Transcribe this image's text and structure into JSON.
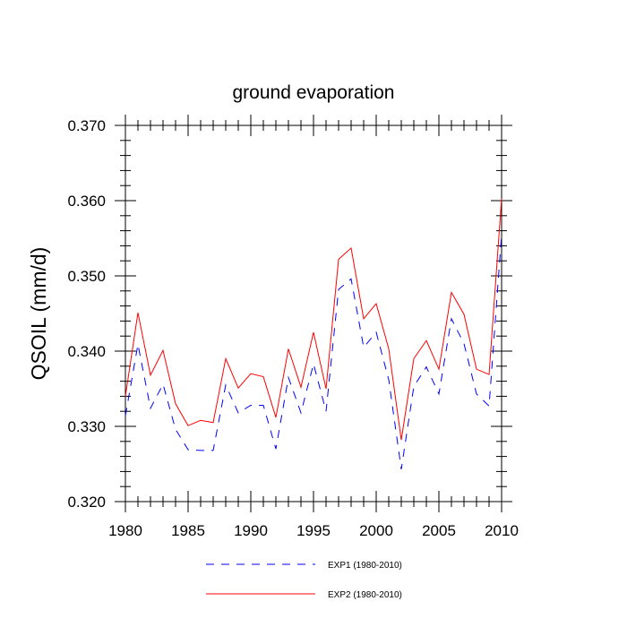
{
  "chart_data": {
    "type": "line",
    "title": "ground evaporation",
    "xlabel": "",
    "ylabel": "QSOIL  (mm/d)",
    "xlim": [
      1980,
      2010
    ],
    "ylim": [
      0.32,
      0.37
    ],
    "x_ticks": [
      1980,
      1985,
      1990,
      1995,
      2000,
      2005,
      2010
    ],
    "x_tick_labels": [
      "1980",
      "1985",
      "1990",
      "1995",
      "2000",
      "2005",
      "2010"
    ],
    "y_ticks": [
      0.32,
      0.33,
      0.34,
      0.35,
      0.36,
      0.37
    ],
    "y_tick_labels": [
      "0.320",
      "0.330",
      "0.340",
      "0.350",
      "0.360",
      "0.370"
    ],
    "grid": false,
    "legend_position": "bottom",
    "x": [
      1980,
      1981,
      1982,
      1983,
      1984,
      1985,
      1986,
      1987,
      1988,
      1989,
      1990,
      1991,
      1992,
      1993,
      1994,
      1995,
      1996,
      1997,
      1998,
      1999,
      2000,
      2001,
      2002,
      2003,
      2004,
      2005,
      2006,
      2007,
      2008,
      2009,
      2010
    ],
    "series": [
      {
        "name": "EXP1 (1980-2010)",
        "color": "#0000ff",
        "style": "dashed",
        "values": [
          0.3314,
          0.3409,
          0.3324,
          0.3356,
          0.3296,
          0.3269,
          0.3268,
          0.3268,
          0.3355,
          0.3318,
          0.3328,
          0.3328,
          0.327,
          0.3365,
          0.3318,
          0.3383,
          0.332,
          0.3482,
          0.3496,
          0.3405,
          0.3425,
          0.3362,
          0.3243,
          0.3353,
          0.3379,
          0.3343,
          0.3443,
          0.341,
          0.3343,
          0.3327,
          0.3555
        ]
      },
      {
        "name": "EXP2 (1980-2010)",
        "color": "#ff0000",
        "style": "solid",
        "values": [
          0.334,
          0.3451,
          0.3368,
          0.3401,
          0.333,
          0.3301,
          0.3308,
          0.3305,
          0.339,
          0.3351,
          0.337,
          0.3366,
          0.3312,
          0.3403,
          0.3352,
          0.3425,
          0.335,
          0.3522,
          0.3537,
          0.3443,
          0.3463,
          0.3403,
          0.3282,
          0.339,
          0.3414,
          0.3376,
          0.3478,
          0.3449,
          0.3376,
          0.3369,
          0.3603
        ]
      }
    ]
  }
}
